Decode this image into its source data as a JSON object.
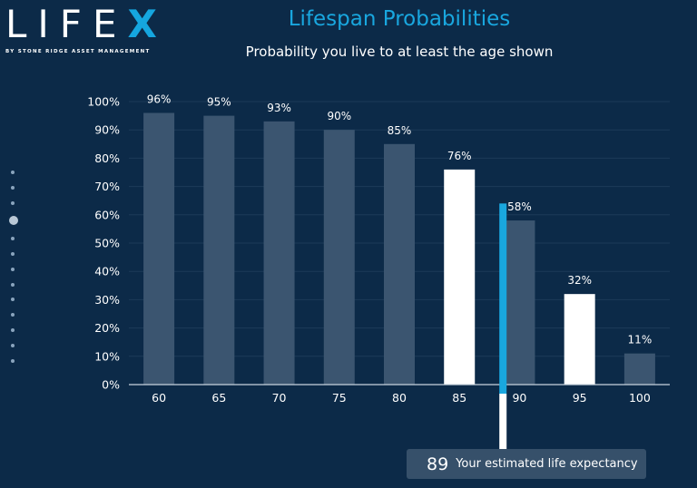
{
  "logo": {
    "word_main": "LIFE",
    "word_accent": "X",
    "tagline": "BY STONE RIDGE ASSET MANAGEMENT"
  },
  "title": "Lifespan Probabilities",
  "subtitle": "Probability you live to at least the age shown",
  "nav_dots": {
    "count": 13,
    "active_index": 3
  },
  "colors": {
    "background": "#0c2a48",
    "bar_default": "#3b5570",
    "bar_highlight": "#ffffff",
    "marker": "#19a7df",
    "grid": "#1d3b59",
    "text": "#ffffff"
  },
  "life_expectancy": {
    "value": "89",
    "label": "Your estimated life expectancy"
  },
  "chart_data": {
    "type": "bar",
    "categories": [
      "60",
      "65",
      "70",
      "75",
      "80",
      "85",
      "90",
      "95",
      "100"
    ],
    "values": [
      96,
      95,
      93,
      90,
      85,
      76,
      58,
      32,
      11
    ],
    "data_labels": [
      "96%",
      "95%",
      "93%",
      "90%",
      "85%",
      "76%",
      "58%",
      "32%",
      "11%"
    ],
    "highlighted": [
      false,
      false,
      false,
      false,
      false,
      true,
      false,
      true,
      false
    ],
    "ylim": [
      0,
      100
    ],
    "yticks": [
      0,
      10,
      20,
      30,
      40,
      50,
      60,
      70,
      80,
      90,
      100
    ],
    "ytick_labels": [
      "0%",
      "10%",
      "20%",
      "30%",
      "40%",
      "50%",
      "60%",
      "70%",
      "80%",
      "90%",
      "100%"
    ],
    "xlabel": "",
    "ylabel": "",
    "grid": true,
    "marker": {
      "x": 89,
      "top_value": 64
    }
  }
}
